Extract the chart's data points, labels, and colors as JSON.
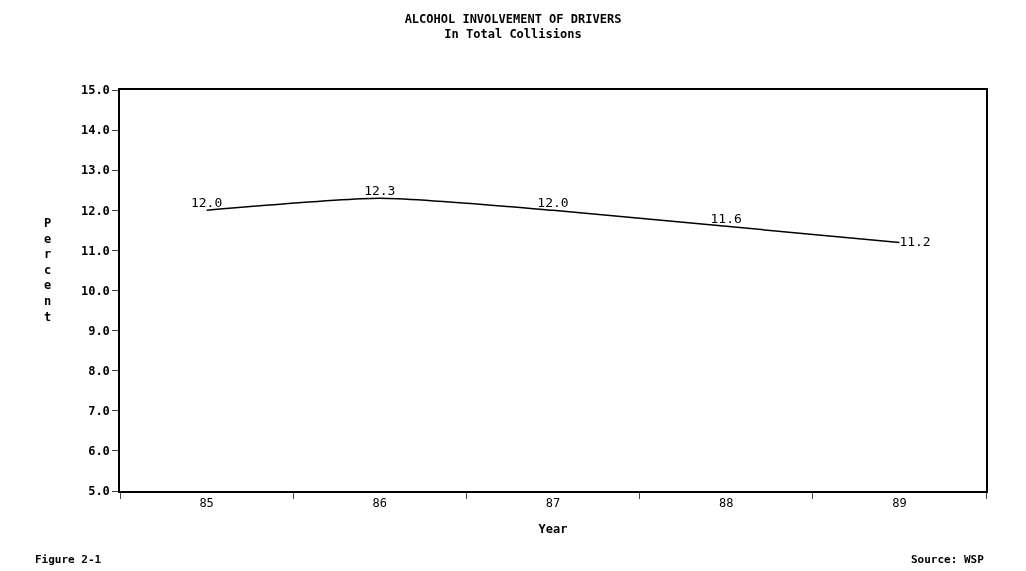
{
  "chart_data": {
    "type": "line",
    "title": "ALCOHOL INVOLVEMENT OF DRIVERS",
    "subtitle": "In Total Collisions",
    "xlabel": "Year",
    "ylabel": "Percent",
    "categories": [
      "85",
      "86",
      "87",
      "88",
      "89"
    ],
    "series": [
      {
        "color": "#000000",
        "values": [
          12.0,
          12.3,
          12.0,
          11.6,
          11.2
        ],
        "value_labels": [
          "12.0",
          "12.3",
          "12.0",
          "11.6",
          "11.2"
        ]
      }
    ],
    "ylim": [
      5,
      15
    ],
    "yticks": [
      {
        "value": 5,
        "label": "5.0"
      },
      {
        "value": 6,
        "label": "6.0"
      },
      {
        "value": 7,
        "label": "7.0"
      },
      {
        "value": 8,
        "label": "8.0"
      },
      {
        "value": 9,
        "label": "9.0"
      },
      {
        "value": 10,
        "label": "10.0"
      },
      {
        "value": 11,
        "label": "11.0"
      },
      {
        "value": 12,
        "label": "12.0"
      },
      {
        "value": 13,
        "label": "13.0"
      },
      {
        "value": 14,
        "label": "14.0"
      },
      {
        "value": 15,
        "label": "15.0"
      }
    ],
    "legend": false,
    "marker": "none",
    "line_style": "solid",
    "annotations": [
      "Figure 2-1",
      "Source: WSP"
    ]
  }
}
